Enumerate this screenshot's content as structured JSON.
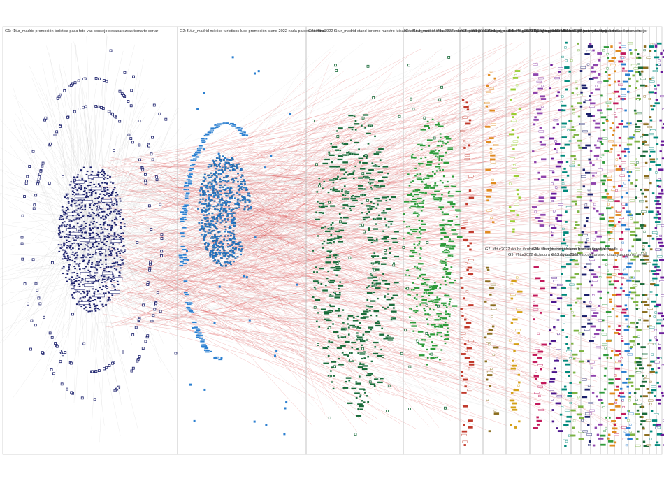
{
  "groups": [
    {
      "id": "G1",
      "label": "G1: f1tur_madrid promoción turística pasa foto vas consejo desaparezcas tomarte cortar",
      "color": "#1a1f6b"
    },
    {
      "id": "G2",
      "label": "G2: f1tur_madrid méxico turísticos luce promoción stand 2022 nada países mientras",
      "color": "#2b7fd0"
    },
    {
      "id": "G3",
      "label": "G3: #fitur2022 f1tur_madrid stand turismo nuestro luisabinader dominicana davidcolladom república nuestra",
      "color": "#1a6b3a"
    },
    {
      "id": "G4",
      "label": "G4: f1tur_madrid #fitur2022 madrid stand gracias nuestro ciudad mundo idiazayuso",
      "color": "#2e9a3a"
    },
    {
      "id": "G5",
      "label": "G5: #fitur2022 f1tur_madrid stand galicia #galicia premio lanzamiento os recibe turgalicia",
      "color": "#c0392b"
    },
    {
      "id": "G6",
      "label": "G6: f1tur_madrid #fitur2022 turismo stand #albacete goizcom provincia turístico turismo mejor",
      "color": "#e08a1e"
    },
    {
      "id": "G7",
      "label": "G7: #fitur2022 #cuba #cubavive stand turismo buena fracaso #madrid hoy fe",
      "color": "#8a6d1e"
    },
    {
      "id": "G8",
      "label": "G8: #fitur2022 f1tur_madrid sevilla turismo provincia dipusevi stand producto",
      "color": "#9acd32"
    },
    {
      "id": "G9",
      "label": "G9: #fitur2022 dictadura vez hoy incluso #abcdelturismo idiazayuso euros gente",
      "color": "#d4a017"
    },
    {
      "id": "G10",
      "label": "G10: f1tur_madrid #fitur2022 turismo stand",
      "color": "#8e44ad"
    },
    {
      "id": "G11",
      "label": "G11: f1tur_madrid turismo gracias nuestro stand",
      "color": "#c2185b"
    },
    {
      "id": "G12",
      "label": "G12: #fitur",
      "color": "#6a1b9a"
    },
    {
      "id": "G13",
      "label": "G13: f1tur 2022",
      "color": "#4a148c"
    },
    {
      "id": "G14",
      "label": "G14",
      "color": "#00897b"
    },
    {
      "id": "G15",
      "label": "G15",
      "color": "#7cb342"
    }
  ],
  "edge_color": "#d93b3b",
  "background": "#ffffff"
}
